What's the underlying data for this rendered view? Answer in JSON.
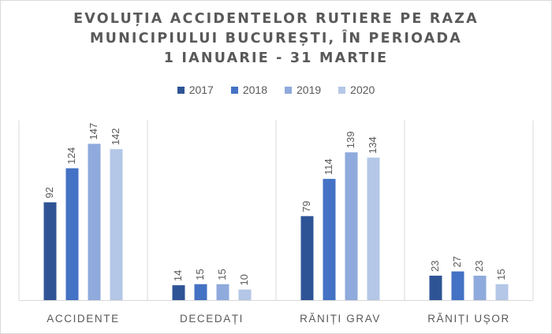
{
  "title_lines": [
    "EVOLUȚIA ACCIDENTELOR RUTIERE PE RAZA",
    "MUNICIPIULUI BUCUREȘTI, ÎN PERIOADA",
    "1 IANUARIE - 31 MARTIE"
  ],
  "colors": {
    "2017": "#2f5496",
    "2018": "#4472c4",
    "2019": "#8faadc",
    "2020": "#b4c7e7"
  },
  "chart_data": {
    "type": "bar",
    "title": "EVOLUȚIA ACCIDENTELOR RUTIERE PE RAZA MUNICIPIULUI BUCUREȘTI, ÎN PERIOADA 1 IANUARIE - 31 MARTIE",
    "categories": [
      "ACCIDENTE",
      "DECEDAȚI",
      "RĂNIȚI GRAV",
      "RĂNIȚI UȘOR"
    ],
    "series": [
      {
        "name": "2017",
        "values": [
          92,
          14,
          79,
          23
        ]
      },
      {
        "name": "2018",
        "values": [
          124,
          15,
          114,
          27
        ]
      },
      {
        "name": "2019",
        "values": [
          147,
          15,
          139,
          23
        ]
      },
      {
        "name": "2020",
        "values": [
          142,
          10,
          134,
          15
        ]
      }
    ],
    "ylim": [
      0,
      160
    ],
    "legend_position": "top",
    "data_labels": true,
    "vertical_separators": true
  }
}
